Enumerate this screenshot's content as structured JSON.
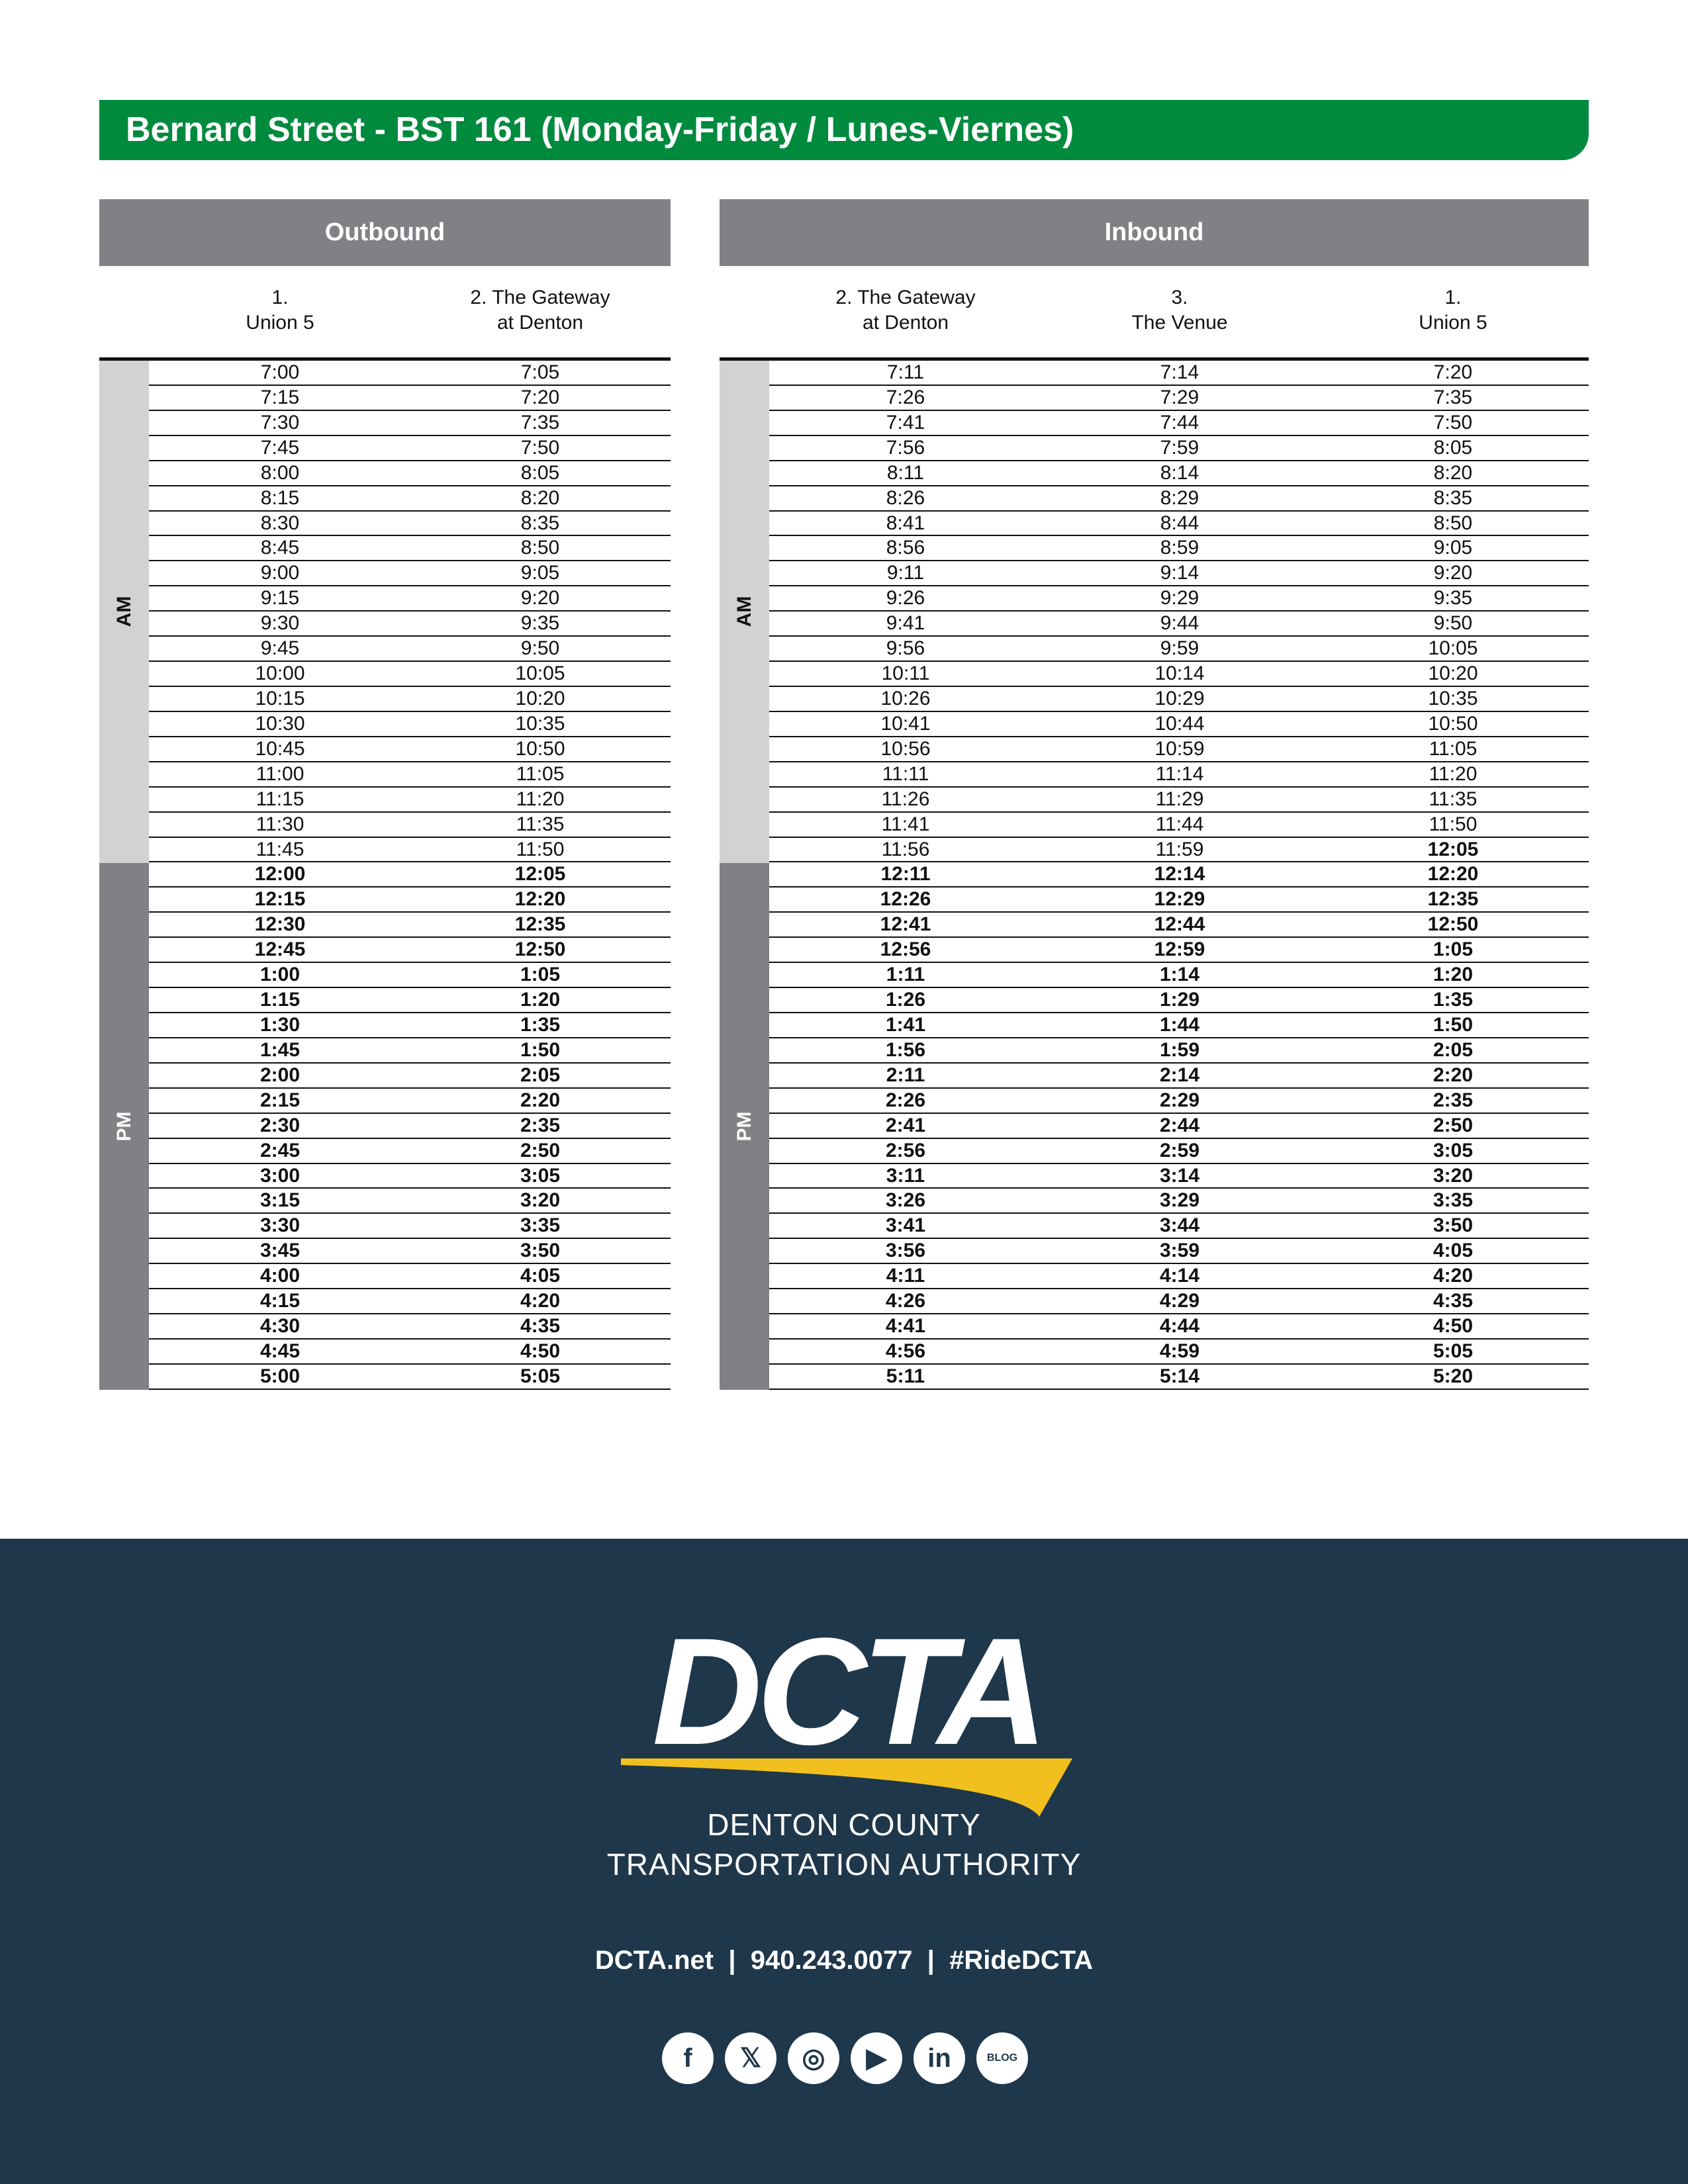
{
  "title": "Bernard Street - BST 161 (Monday-Friday / Lunes-Viernes)",
  "outbound": {
    "label": "Outbound",
    "columns": [
      "1.\nUnion 5",
      "2. The Gateway\nat Denton"
    ],
    "am": [
      [
        "7:00",
        "7:05"
      ],
      [
        "7:15",
        "7:20"
      ],
      [
        "7:30",
        "7:35"
      ],
      [
        "7:45",
        "7:50"
      ],
      [
        "8:00",
        "8:05"
      ],
      [
        "8:15",
        "8:20"
      ],
      [
        "8:30",
        "8:35"
      ],
      [
        "8:45",
        "8:50"
      ],
      [
        "9:00",
        "9:05"
      ],
      [
        "9:15",
        "9:20"
      ],
      [
        "9:30",
        "9:35"
      ],
      [
        "9:45",
        "9:50"
      ],
      [
        "10:00",
        "10:05"
      ],
      [
        "10:15",
        "10:20"
      ],
      [
        "10:30",
        "10:35"
      ],
      [
        "10:45",
        "10:50"
      ],
      [
        "11:00",
        "11:05"
      ],
      [
        "11:15",
        "11:20"
      ],
      [
        "11:30",
        "11:35"
      ],
      [
        "11:45",
        "11:50"
      ]
    ],
    "pm": [
      [
        "12:00",
        "12:05"
      ],
      [
        "12:15",
        "12:20"
      ],
      [
        "12:30",
        "12:35"
      ],
      [
        "12:45",
        "12:50"
      ],
      [
        "1:00",
        "1:05"
      ],
      [
        "1:15",
        "1:20"
      ],
      [
        "1:30",
        "1:35"
      ],
      [
        "1:45",
        "1:50"
      ],
      [
        "2:00",
        "2:05"
      ],
      [
        "2:15",
        "2:20"
      ],
      [
        "2:30",
        "2:35"
      ],
      [
        "2:45",
        "2:50"
      ],
      [
        "3:00",
        "3:05"
      ],
      [
        "3:15",
        "3:20"
      ],
      [
        "3:30",
        "3:35"
      ],
      [
        "3:45",
        "3:50"
      ],
      [
        "4:00",
        "4:05"
      ],
      [
        "4:15",
        "4:20"
      ],
      [
        "4:30",
        "4:35"
      ],
      [
        "4:45",
        "4:50"
      ],
      [
        "5:00",
        "5:05"
      ]
    ]
  },
  "inbound": {
    "label": "Inbound",
    "columns": [
      "2. The Gateway\nat Denton",
      "3.\nThe Venue",
      "1.\nUnion 5"
    ],
    "am": [
      [
        "7:11",
        "7:14",
        "7:20"
      ],
      [
        "7:26",
        "7:29",
        "7:35"
      ],
      [
        "7:41",
        "7:44",
        "7:50"
      ],
      [
        "7:56",
        "7:59",
        "8:05"
      ],
      [
        "8:11",
        "8:14",
        "8:20"
      ],
      [
        "8:26",
        "8:29",
        "8:35"
      ],
      [
        "8:41",
        "8:44",
        "8:50"
      ],
      [
        "8:56",
        "8:59",
        "9:05"
      ],
      [
        "9:11",
        "9:14",
        "9:20"
      ],
      [
        "9:26",
        "9:29",
        "9:35"
      ],
      [
        "9:41",
        "9:44",
        "9:50"
      ],
      [
        "9:56",
        "9:59",
        "10:05"
      ],
      [
        "10:11",
        "10:14",
        "10:20"
      ],
      [
        "10:26",
        "10:29",
        "10:35"
      ],
      [
        "10:41",
        "10:44",
        "10:50"
      ],
      [
        "10:56",
        "10:59",
        "11:05"
      ],
      [
        "11:11",
        "11:14",
        "11:20"
      ],
      [
        "11:26",
        "11:29",
        "11:35"
      ],
      [
        "11:41",
        "11:44",
        "11:50"
      ],
      [
        "11:56",
        "11:59",
        "12:05"
      ]
    ],
    "pm": [
      [
        "12:11",
        "12:14",
        "12:20"
      ],
      [
        "12:26",
        "12:29",
        "12:35"
      ],
      [
        "12:41",
        "12:44",
        "12:50"
      ],
      [
        "12:56",
        "12:59",
        "1:05"
      ],
      [
        "1:11",
        "1:14",
        "1:20"
      ],
      [
        "1:26",
        "1:29",
        "1:35"
      ],
      [
        "1:41",
        "1:44",
        "1:50"
      ],
      [
        "1:56",
        "1:59",
        "2:05"
      ],
      [
        "2:11",
        "2:14",
        "2:20"
      ],
      [
        "2:26",
        "2:29",
        "2:35"
      ],
      [
        "2:41",
        "2:44",
        "2:50"
      ],
      [
        "2:56",
        "2:59",
        "3:05"
      ],
      [
        "3:11",
        "3:14",
        "3:20"
      ],
      [
        "3:26",
        "3:29",
        "3:35"
      ],
      [
        "3:41",
        "3:44",
        "3:50"
      ],
      [
        "3:56",
        "3:59",
        "4:05"
      ],
      [
        "4:11",
        "4:14",
        "4:20"
      ],
      [
        "4:26",
        "4:29",
        "4:35"
      ],
      [
        "4:41",
        "4:44",
        "4:50"
      ],
      [
        "4:56",
        "4:59",
        "5:05"
      ],
      [
        "5:11",
        "5:14",
        "5:20"
      ]
    ]
  },
  "period_labels": {
    "am": "AM",
    "pm": "PM"
  },
  "footer": {
    "logo_text": "DCTA",
    "agency_line1": "DENTON COUNTY",
    "agency_line2": "TRANSPORTATION AUTHORITY",
    "contact": "DCTA.net  |  940.243.0077  |  #RideDCTA",
    "social": [
      {
        "icon": "facebook-icon",
        "glyph": "f"
      },
      {
        "icon": "x-icon",
        "glyph": "𝕏"
      },
      {
        "icon": "instagram-icon",
        "glyph": "◎"
      },
      {
        "icon": "youtube-icon",
        "glyph": "▶"
      },
      {
        "icon": "linkedin-icon",
        "glyph": "in"
      },
      {
        "icon": "blog-icon",
        "glyph": "BLOG"
      }
    ]
  },
  "colors": {
    "green": "#008a3e",
    "gray": "#808184",
    "light_gray": "#d1d2d4",
    "navy": "#1f374b",
    "yellow": "#f2c01e"
  }
}
